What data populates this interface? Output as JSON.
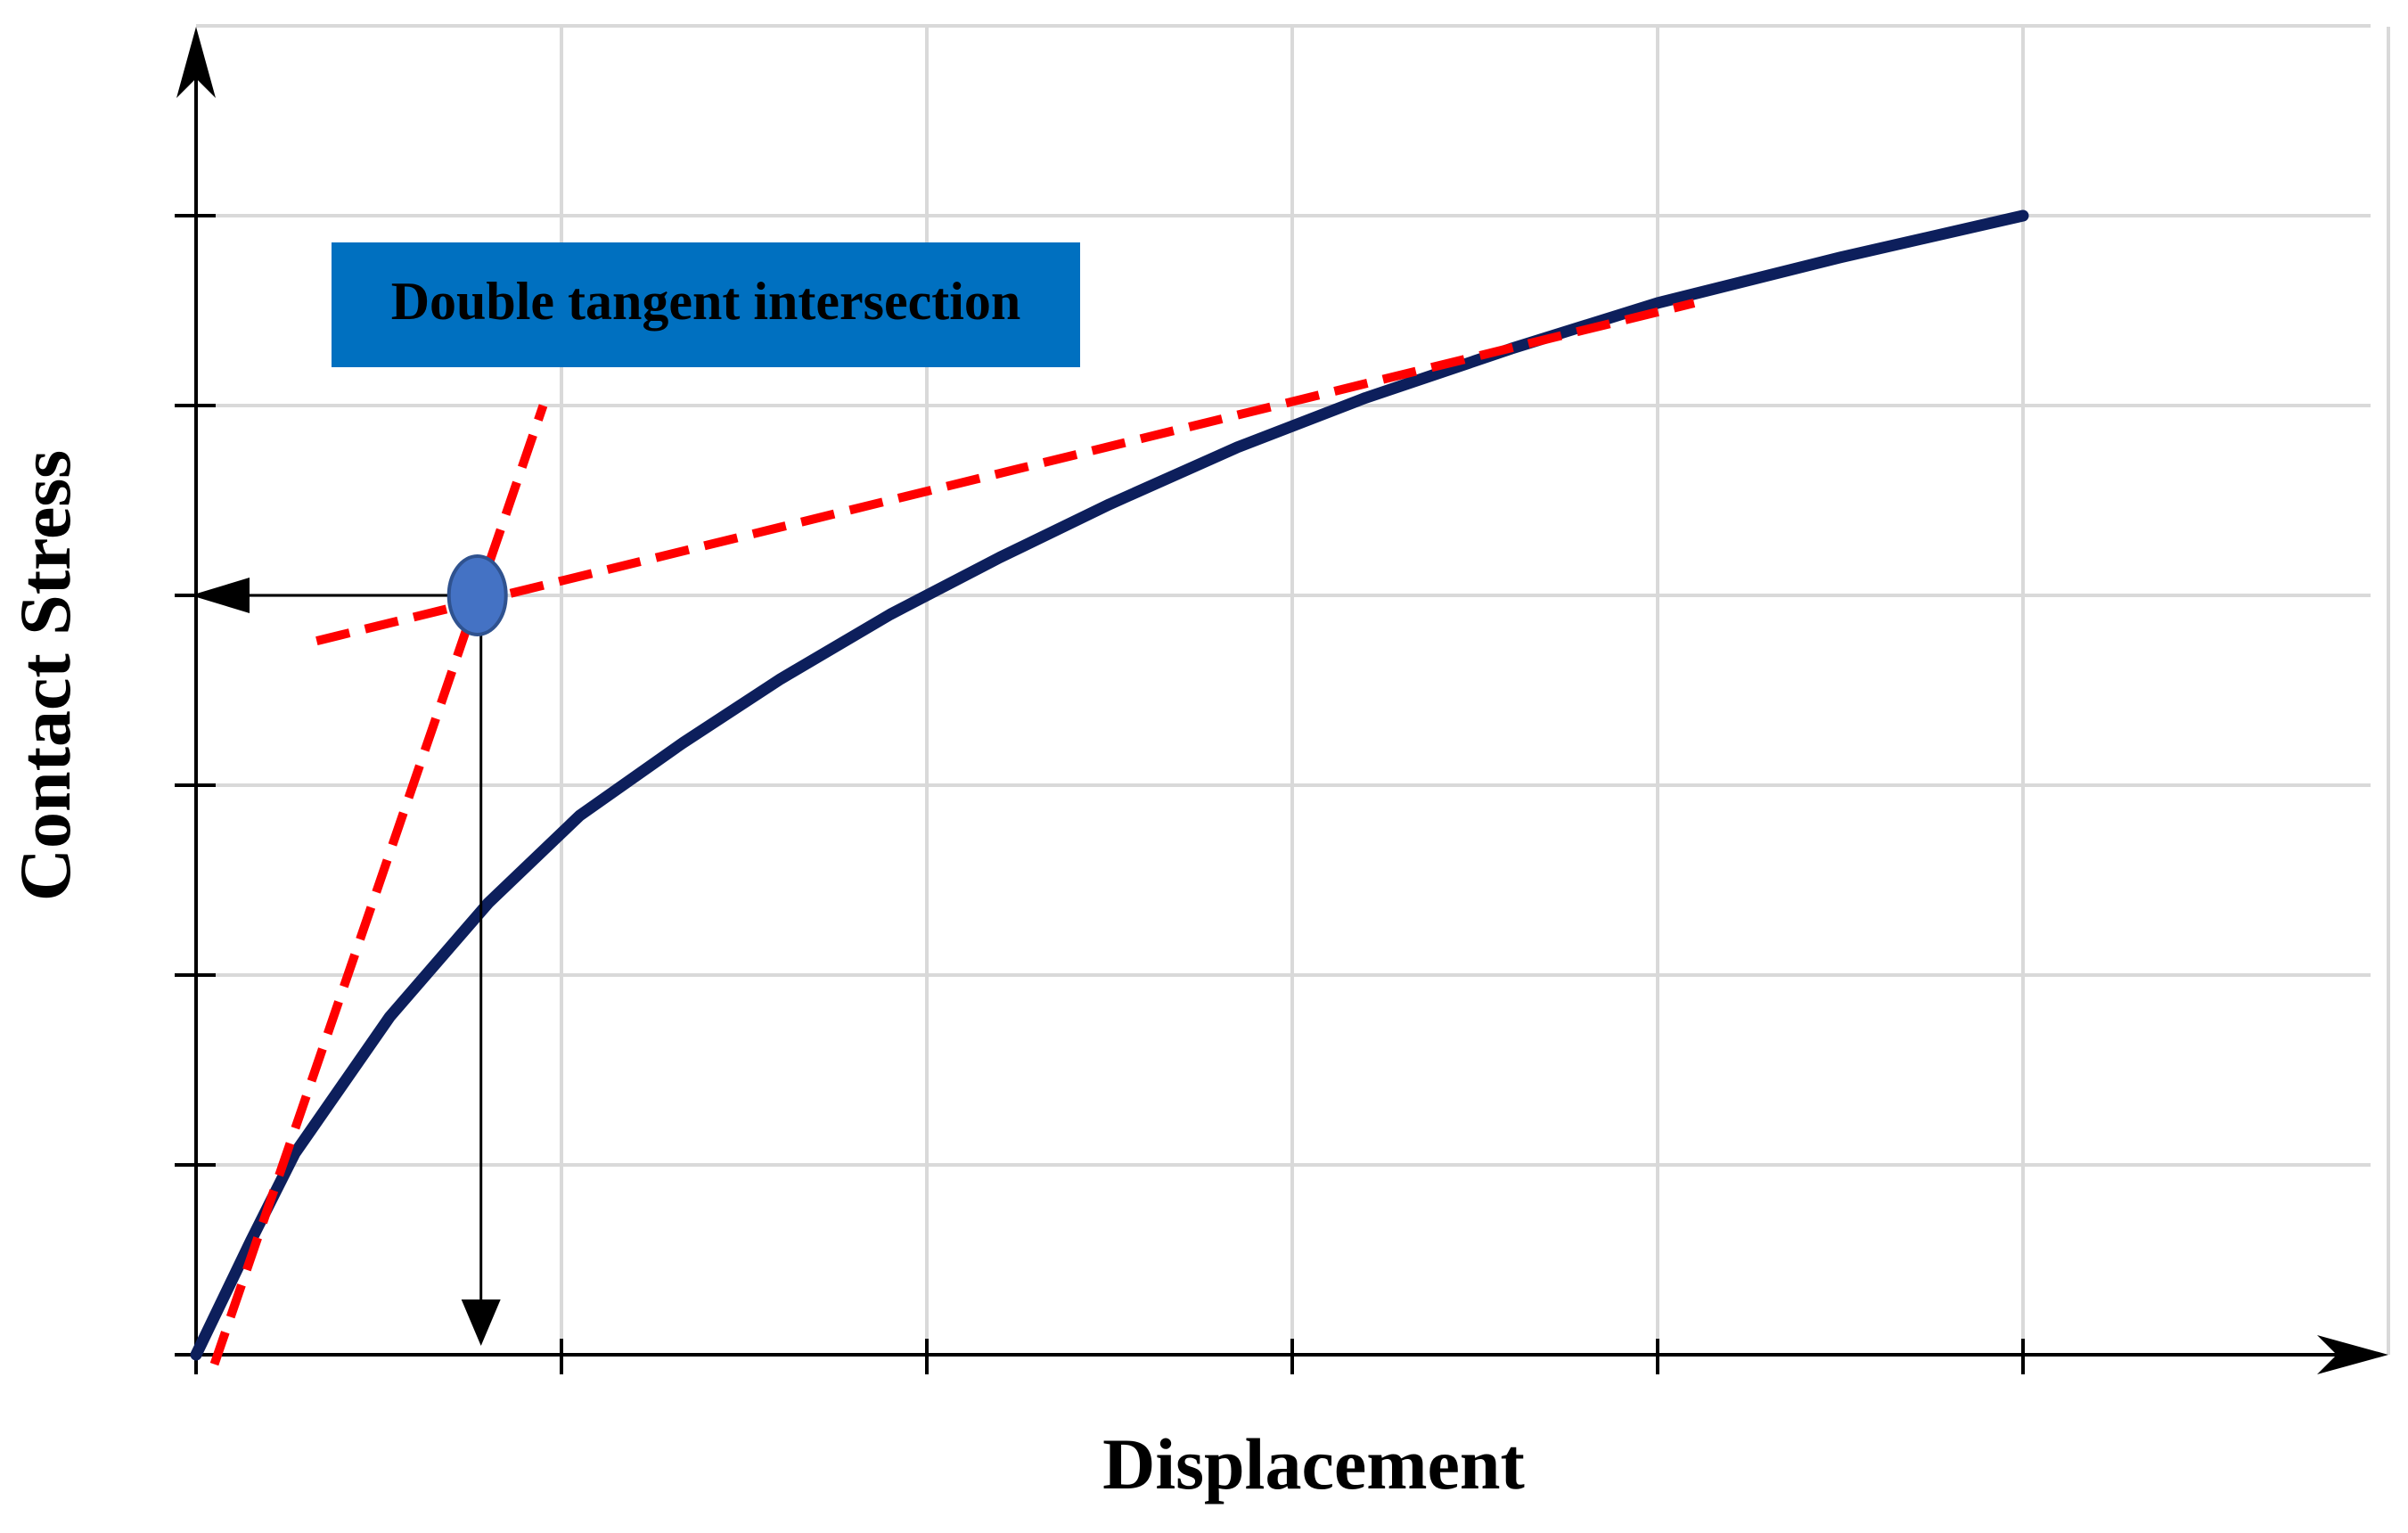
{
  "chart_data": {
    "type": "line",
    "title": "",
    "xlabel": "Displacement",
    "ylabel": "Contact Stress",
    "x_tick_labels": [],
    "y_tick_labels": [],
    "xlim": [
      0,
      6
    ],
    "ylim": [
      0,
      7
    ],
    "grid": true,
    "x_gridlines": [
      1,
      2,
      3,
      4,
      5,
      6
    ],
    "y_gridlines": [
      1,
      2,
      3,
      4,
      5,
      6,
      7
    ],
    "series": [
      {
        "x": [
          0,
          0.15,
          0.27,
          0.53,
          0.8,
          1.05,
          1.33,
          1.6,
          1.9,
          2.2,
          2.5,
          2.85,
          3.2,
          3.6,
          4.0,
          4.5,
          5.0
        ],
        "y": [
          0,
          0.6,
          1.06,
          1.78,
          2.38,
          2.84,
          3.22,
          3.56,
          3.9,
          4.2,
          4.48,
          4.78,
          5.04,
          5.3,
          5.54,
          5.78,
          6.0
        ],
        "color": "#0d1f5c",
        "style": "solid"
      }
    ],
    "tangent_lines": [
      {
        "x": [
          0.05,
          0.95
        ],
        "y": [
          -0.05,
          5.0
        ],
        "color": "#ff0000",
        "style": "dashed"
      },
      {
        "x": [
          0.33,
          4.1
        ],
        "y": [
          3.76,
          5.54
        ],
        "color": "#ff0000",
        "style": "dashed"
      }
    ],
    "intersection_point": {
      "x": 0.77,
      "y": 4.0,
      "color": "#4472c4"
    },
    "annotations": [
      {
        "text": "Double tangent intersection",
        "background": "#0070c0"
      }
    ]
  }
}
